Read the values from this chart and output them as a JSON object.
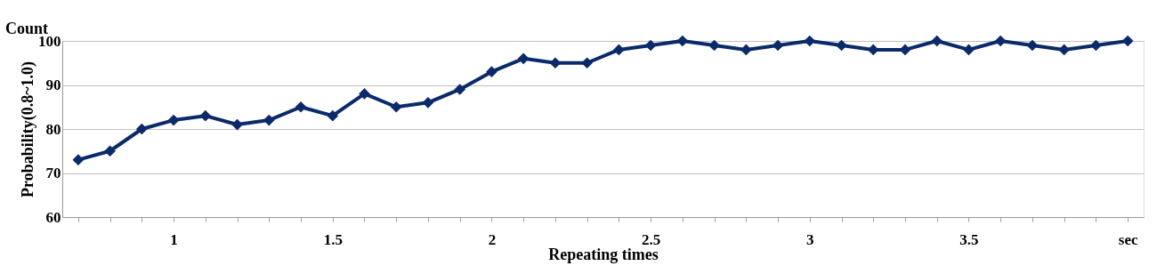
{
  "chart_data": {
    "type": "line",
    "xlabel": "Repeating times",
    "ylabel": "Probability(0.8~1.0)",
    "annotations": [
      "Count"
    ],
    "categories": [
      null,
      null,
      null,
      "1",
      null,
      null,
      null,
      null,
      "1.5",
      null,
      null,
      null,
      null,
      "2",
      null,
      null,
      null,
      null,
      "2.5",
      null,
      null,
      null,
      null,
      "3",
      null,
      null,
      null,
      null,
      "3.5",
      null,
      null,
      null,
      null,
      "sec"
    ],
    "series": [
      {
        "color": "#0b2a6b",
        "values": [
          73,
          75,
          80,
          82,
          83,
          81,
          82,
          85,
          83,
          88,
          85,
          86,
          89,
          93,
          96,
          95,
          95,
          98,
          99,
          100,
          99,
          98,
          99,
          100,
          99,
          98,
          98,
          100,
          98,
          100,
          99,
          98,
          99,
          100
        ]
      }
    ],
    "ylim": [
      60,
      100
    ],
    "yticks": [
      60,
      70,
      80,
      90,
      100
    ],
    "grid": "y",
    "marker": "diamond",
    "line_style": "solid",
    "legend": false
  }
}
